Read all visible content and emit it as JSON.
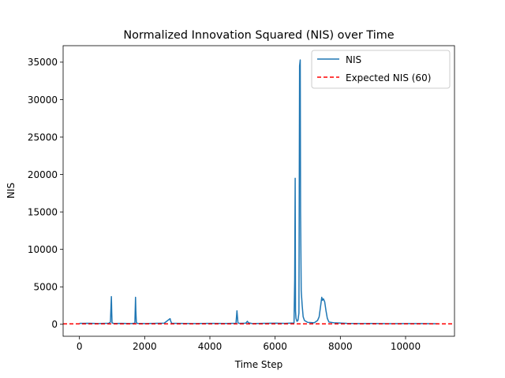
{
  "chart_data": {
    "type": "line",
    "title": "Normalized Innovation Squared (NIS) over Time",
    "xlabel": "Time Step",
    "ylabel": "NIS",
    "xlim": [
      -500,
      11500
    ],
    "ylim": [
      -1600,
      37200
    ],
    "xticks": [
      0,
      2000,
      4000,
      6000,
      8000,
      10000
    ],
    "yticks": [
      0,
      5000,
      10000,
      15000,
      20000,
      25000,
      30000,
      35000
    ],
    "grid": false,
    "legend_position": "upper right",
    "series": [
      {
        "name": "NIS",
        "style": "solid",
        "color": "#1f77b4",
        "x": [
          0,
          300,
          600,
          900,
          950,
          980,
          990,
          1000,
          1020,
          1060,
          1300,
          1600,
          1700,
          1720,
          1730,
          1745,
          1770,
          2000,
          2300,
          2600,
          2780,
          2800,
          2830,
          3000,
          3500,
          4000,
          4500,
          4800,
          4830,
          4845,
          4860,
          4900,
          5100,
          5150,
          5180,
          5300,
          5600,
          6000,
          6300,
          6580,
          6600,
          6615,
          6625,
          6640,
          6655,
          6670,
          6700,
          6730,
          6750,
          6770,
          6780,
          6800,
          6830,
          6860,
          6900,
          7000,
          7200,
          7300,
          7350,
          7400,
          7430,
          7450,
          7480,
          7520,
          7560,
          7600,
          7650,
          7800,
          8200,
          8600,
          9000,
          9500,
          10000,
          10500,
          11000
        ],
        "y": [
          120,
          130,
          100,
          140,
          300,
          3700,
          1600,
          200,
          150,
          110,
          120,
          100,
          150,
          3600,
          1800,
          300,
          120,
          100,
          120,
          150,
          750,
          400,
          130,
          120,
          100,
          120,
          110,
          130,
          1800,
          1000,
          200,
          120,
          150,
          400,
          200,
          100,
          120,
          150,
          120,
          180,
          6000,
          19500,
          1800,
          800,
          600,
          400,
          500,
          1500,
          34500,
          35300,
          15000,
          4500,
          2500,
          1000,
          500,
          250,
          200,
          500,
          1000,
          2600,
          3600,
          3200,
          3400,
          3000,
          1800,
          800,
          300,
          200,
          120,
          100,
          110,
          80,
          100,
          90,
          70
        ]
      },
      {
        "name": "Expected NIS (60)",
        "style": "dashed",
        "color": "#ff0000",
        "y_constant": 60
      }
    ]
  }
}
